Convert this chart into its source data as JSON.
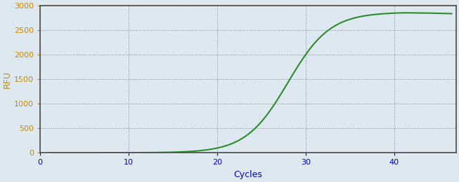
{
  "xlabel": "Cycles",
  "ylabel": "RFU",
  "line_color": "#2e8b2e",
  "background_color": "#dde8f0",
  "plot_bg_color": "#dde8f0",
  "grid_color": "#888888",
  "border_color": "#4a4a4a",
  "xlim": [
    0,
    47
  ],
  "ylim": [
    0,
    3000
  ],
  "xticks": [
    0,
    10,
    20,
    30,
    40
  ],
  "yticks": [
    0,
    500,
    1000,
    1500,
    2000,
    2500,
    3000
  ],
  "ytick_color": "#cc8800",
  "xtick_color": "#0000cc",
  "ylabel_color": "#cc8800",
  "xlabel_color": "#0000cc",
  "sigmoid_L": 2920,
  "sigmoid_k": 0.42,
  "sigmoid_x0": 28.0,
  "x_start": 1,
  "x_end": 46.5,
  "line_width": 1.5,
  "decay_start": 41,
  "decay_rate": 5.0,
  "peak_rfu": 2855
}
